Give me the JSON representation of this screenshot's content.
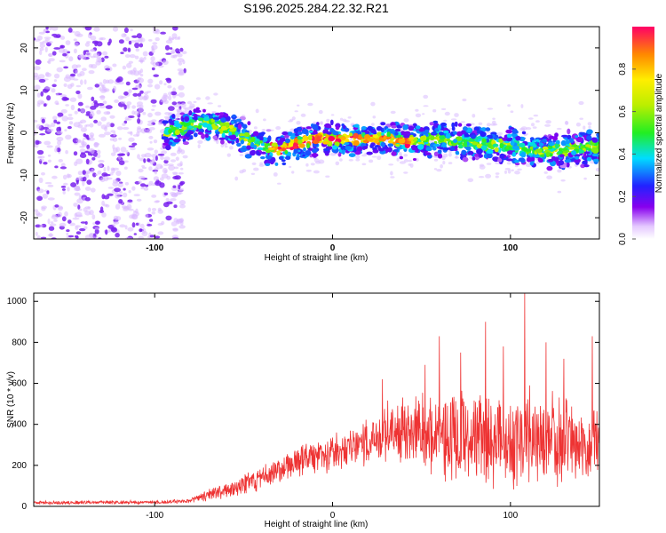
{
  "title": "S196.2025.284.22.32.R21",
  "chart_data": [
    {
      "type": "heatmap",
      "xlabel": "Height of straight line (km)",
      "ylabel": "Frequency (Hz)",
      "xlim": [
        -168,
        150
      ],
      "ylim": [
        -25,
        25
      ],
      "xticks": [
        -100,
        0,
        100
      ],
      "xtick_labels": [
        "-100",
        "0",
        "100"
      ],
      "yticks": [
        -20,
        -10,
        0,
        10,
        20
      ],
      "ytick_labels": [
        "-20",
        "-10",
        "0",
        "10",
        "20"
      ],
      "colorbar": {
        "label": "Normalized spectral amplitude",
        "range": [
          0,
          1
        ],
        "ticks": [
          0.0,
          0.2,
          0.4,
          0.6,
          0.8
        ],
        "tick_labels": [
          "0.0",
          "0.2",
          "0.4",
          "0.6",
          "0.8"
        ]
      },
      "ridge": {
        "start_x": -95,
        "noise_end_x": -85,
        "points": [
          {
            "x": -95,
            "y": 0
          },
          {
            "x": -85,
            "y": 1
          },
          {
            "x": -75,
            "y": 2
          },
          {
            "x": -68,
            "y": 2.5
          },
          {
            "x": -60,
            "y": 1
          },
          {
            "x": -50,
            "y": -1
          },
          {
            "x": -40,
            "y": -3
          },
          {
            "x": -30,
            "y": -4
          },
          {
            "x": -20,
            "y": -2.5
          },
          {
            "x": -10,
            "y": -1.5
          },
          {
            "x": 0,
            "y": -1.5
          },
          {
            "x": 10,
            "y": -1.5
          },
          {
            "x": 20,
            "y": -1.5
          },
          {
            "x": 30,
            "y": -1.5
          },
          {
            "x": 40,
            "y": -2
          },
          {
            "x": 50,
            "y": -2
          },
          {
            "x": 60,
            "y": -1.5
          },
          {
            "x": 70,
            "y": -2
          },
          {
            "x": 80,
            "y": -2.5
          },
          {
            "x": 90,
            "y": -3
          },
          {
            "x": 100,
            "y": -3
          },
          {
            "x": 110,
            "y": -4
          },
          {
            "x": 120,
            "y": -4.5
          },
          {
            "x": 130,
            "y": -4
          },
          {
            "x": 140,
            "y": -3.5
          },
          {
            "x": 150,
            "y": -3
          }
        ],
        "peak_range_x": [
          -35,
          45
        ]
      }
    },
    {
      "type": "line",
      "xlabel": "Height of straight line (km)",
      "ylabel": "SNR (10 * v/v)",
      "xlim": [
        -168,
        150
      ],
      "ylim": [
        0,
        1040
      ],
      "xticks": [
        -100,
        0,
        100
      ],
      "xtick_labels": [
        "-100",
        "0",
        "100"
      ],
      "yticks": [
        0,
        200,
        400,
        600,
        800,
        1000
      ],
      "ytick_labels": [
        "0",
        "200",
        "400",
        "600",
        "800",
        "1000"
      ],
      "series": [
        {
          "name": "SNR",
          "color": "#ee3333",
          "envelope_x": [
            -168,
            -100,
            -80,
            -75,
            -60,
            -40,
            -20,
            0,
            20,
            30,
            40,
            60,
            80,
            100,
            120,
            140,
            150
          ],
          "envelope_base": [
            18,
            20,
            25,
            45,
            80,
            140,
            220,
            260,
            310,
            360,
            380,
            330,
            320,
            330,
            330,
            310,
            320
          ],
          "envelope_amp": [
            10,
            10,
            12,
            25,
            45,
            70,
            90,
            100,
            120,
            160,
            200,
            260,
            280,
            280,
            270,
            250,
            250
          ],
          "spikes": [
            {
              "x": 108,
              "y": 1040
            },
            {
              "x": 86,
              "y": 900
            },
            {
              "x": 60,
              "y": 830
            },
            {
              "x": 146,
              "y": 830
            },
            {
              "x": 120,
              "y": 800
            },
            {
              "x": 96,
              "y": 780
            },
            {
              "x": 72,
              "y": 750
            },
            {
              "x": 130,
              "y": 720
            },
            {
              "x": 28,
              "y": 620
            },
            {
              "x": 52,
              "y": 690
            }
          ]
        }
      ]
    }
  ]
}
